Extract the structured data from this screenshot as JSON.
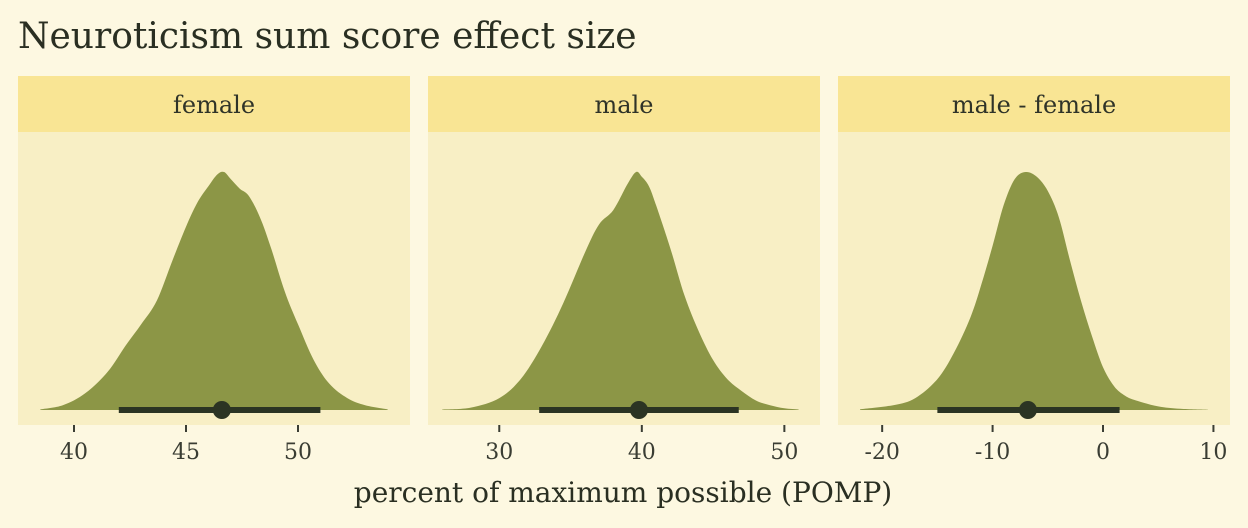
{
  "chart_data": {
    "type": "area",
    "title": "Neuroticism sum score effect size",
    "xlabel": "percent of maximum possible (POMP)",
    "ylabel": "",
    "grid": false,
    "legend": "none",
    "colors": {
      "background": "#fdf8e1",
      "panel": "#f8efc5",
      "strip": "#f9e594",
      "density_fill": "#8c9646",
      "interval": "#2b3423"
    },
    "panels": [
      {
        "label": "female",
        "xlim": [
          37.5,
          55
        ],
        "ticks": [
          40,
          45,
          50
        ],
        "tick_labels": [
          "40",
          "45",
          "50"
        ],
        "density": {
          "x": [
            38.5,
            39.5,
            40.5,
            41.5,
            42.3,
            43.0,
            43.7,
            44.4,
            45.0,
            45.5,
            46.0,
            46.4,
            46.7,
            47.0,
            47.4,
            47.8,
            48.3,
            48.8,
            49.4,
            50.0,
            50.7,
            51.4,
            52.2,
            53.0,
            54.0
          ],
          "y": [
            0.003,
            0.02,
            0.07,
            0.16,
            0.27,
            0.36,
            0.46,
            0.63,
            0.77,
            0.87,
            0.94,
            0.99,
            1.0,
            0.97,
            0.93,
            0.9,
            0.81,
            0.68,
            0.5,
            0.36,
            0.21,
            0.11,
            0.05,
            0.02,
            0.003
          ]
        },
        "point": 46.6,
        "interval": [
          42.0,
          51.0
        ]
      },
      {
        "label": "male",
        "xlim": [
          25,
          52.5
        ],
        "ticks": [
          30,
          40,
          50
        ],
        "tick_labels": [
          "30",
          "40",
          "50"
        ],
        "density": {
          "x": [
            26.0,
            28.0,
            30.0,
            31.5,
            33.0,
            34.5,
            36.0,
            37.0,
            38.0,
            39.0,
            39.6,
            40.0,
            40.5,
            41.0,
            42.0,
            43.0,
            44.0,
            45.0,
            46.0,
            47.0,
            48.0,
            49.0,
            50.0,
            51.0
          ],
          "y": [
            0.002,
            0.01,
            0.05,
            0.13,
            0.27,
            0.45,
            0.66,
            0.78,
            0.84,
            0.95,
            1.0,
            0.98,
            0.94,
            0.86,
            0.68,
            0.48,
            0.33,
            0.21,
            0.13,
            0.08,
            0.04,
            0.02,
            0.007,
            0.002
          ]
        },
        "point": 39.8,
        "interval": [
          32.8,
          46.8
        ]
      },
      {
        "label": "male - female",
        "xlim": [
          -24,
          11.5
        ],
        "ticks": [
          -20,
          -10,
          0,
          10
        ],
        "tick_labels": [
          "-20",
          "-10",
          "0",
          "10"
        ],
        "density": {
          "x": [
            -22.0,
            -19.0,
            -17.0,
            -15.0,
            -13.5,
            -12.0,
            -11.0,
            -10.0,
            -9.0,
            -8.0,
            -7.0,
            -6.0,
            -5.0,
            -4.0,
            -3.0,
            -2.0,
            -1.0,
            0.0,
            1.0,
            2.0,
            3.0,
            5.0,
            7.0,
            9.5
          ],
          "y": [
            0.003,
            0.02,
            0.05,
            0.13,
            0.24,
            0.39,
            0.53,
            0.69,
            0.86,
            0.97,
            1.0,
            0.98,
            0.92,
            0.81,
            0.63,
            0.46,
            0.31,
            0.18,
            0.1,
            0.06,
            0.04,
            0.015,
            0.005,
            0.001
          ]
        },
        "point": -6.8,
        "interval": [
          -15.0,
          1.5
        ]
      }
    ]
  }
}
